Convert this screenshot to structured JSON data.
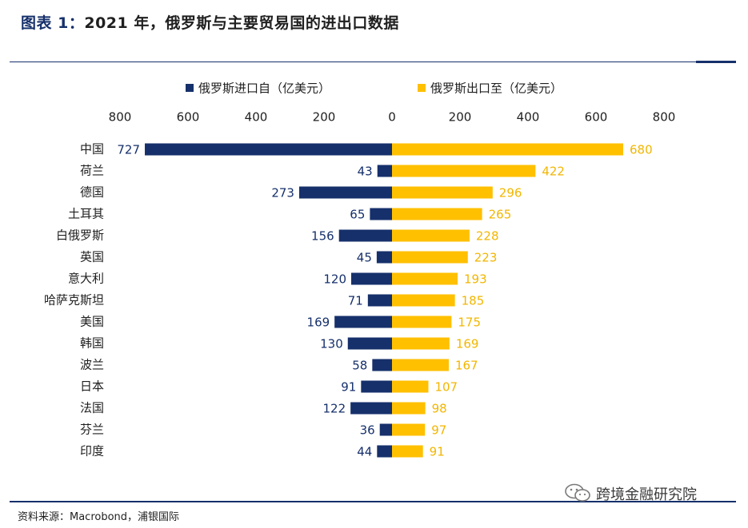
{
  "header": {
    "title_lead": "图表 1：",
    "title_rest": "2021 年，俄罗斯与主要贸易国的进出口数据"
  },
  "source": "资料来源：Macrobond，浦银国际",
  "watermark": "跨境金融研究院",
  "colors": {
    "import": "#16306b",
    "export": "#ffc000",
    "rule": "#16306b"
  },
  "chart_data": {
    "type": "bar",
    "orientation": "horizontal",
    "layout": "diverging",
    "legend_position": "top",
    "grid": false,
    "categories": [
      "中国",
      "荷兰",
      "德国",
      "土耳其",
      "白俄罗斯",
      "英国",
      "意大利",
      "哈萨克斯坦",
      "美国",
      "韩国",
      "波兰",
      "日本",
      "法国",
      "芬兰",
      "印度"
    ],
    "series": [
      {
        "name": "俄罗斯进口自（亿美元）",
        "side": "left",
        "values": [
          727,
          43,
          273,
          65,
          156,
          45,
          120,
          71,
          169,
          130,
          58,
          91,
          122,
          36,
          44
        ]
      },
      {
        "name": "俄罗斯出口至（亿美元）",
        "side": "right",
        "values": [
          680,
          422,
          296,
          265,
          228,
          223,
          193,
          185,
          175,
          169,
          167,
          107,
          98,
          97,
          91
        ]
      }
    ],
    "xlim": [
      -800,
      800
    ],
    "tick_labels": [
      "800",
      "600",
      "400",
      "200",
      "0",
      "200",
      "400",
      "600",
      "800"
    ]
  }
}
